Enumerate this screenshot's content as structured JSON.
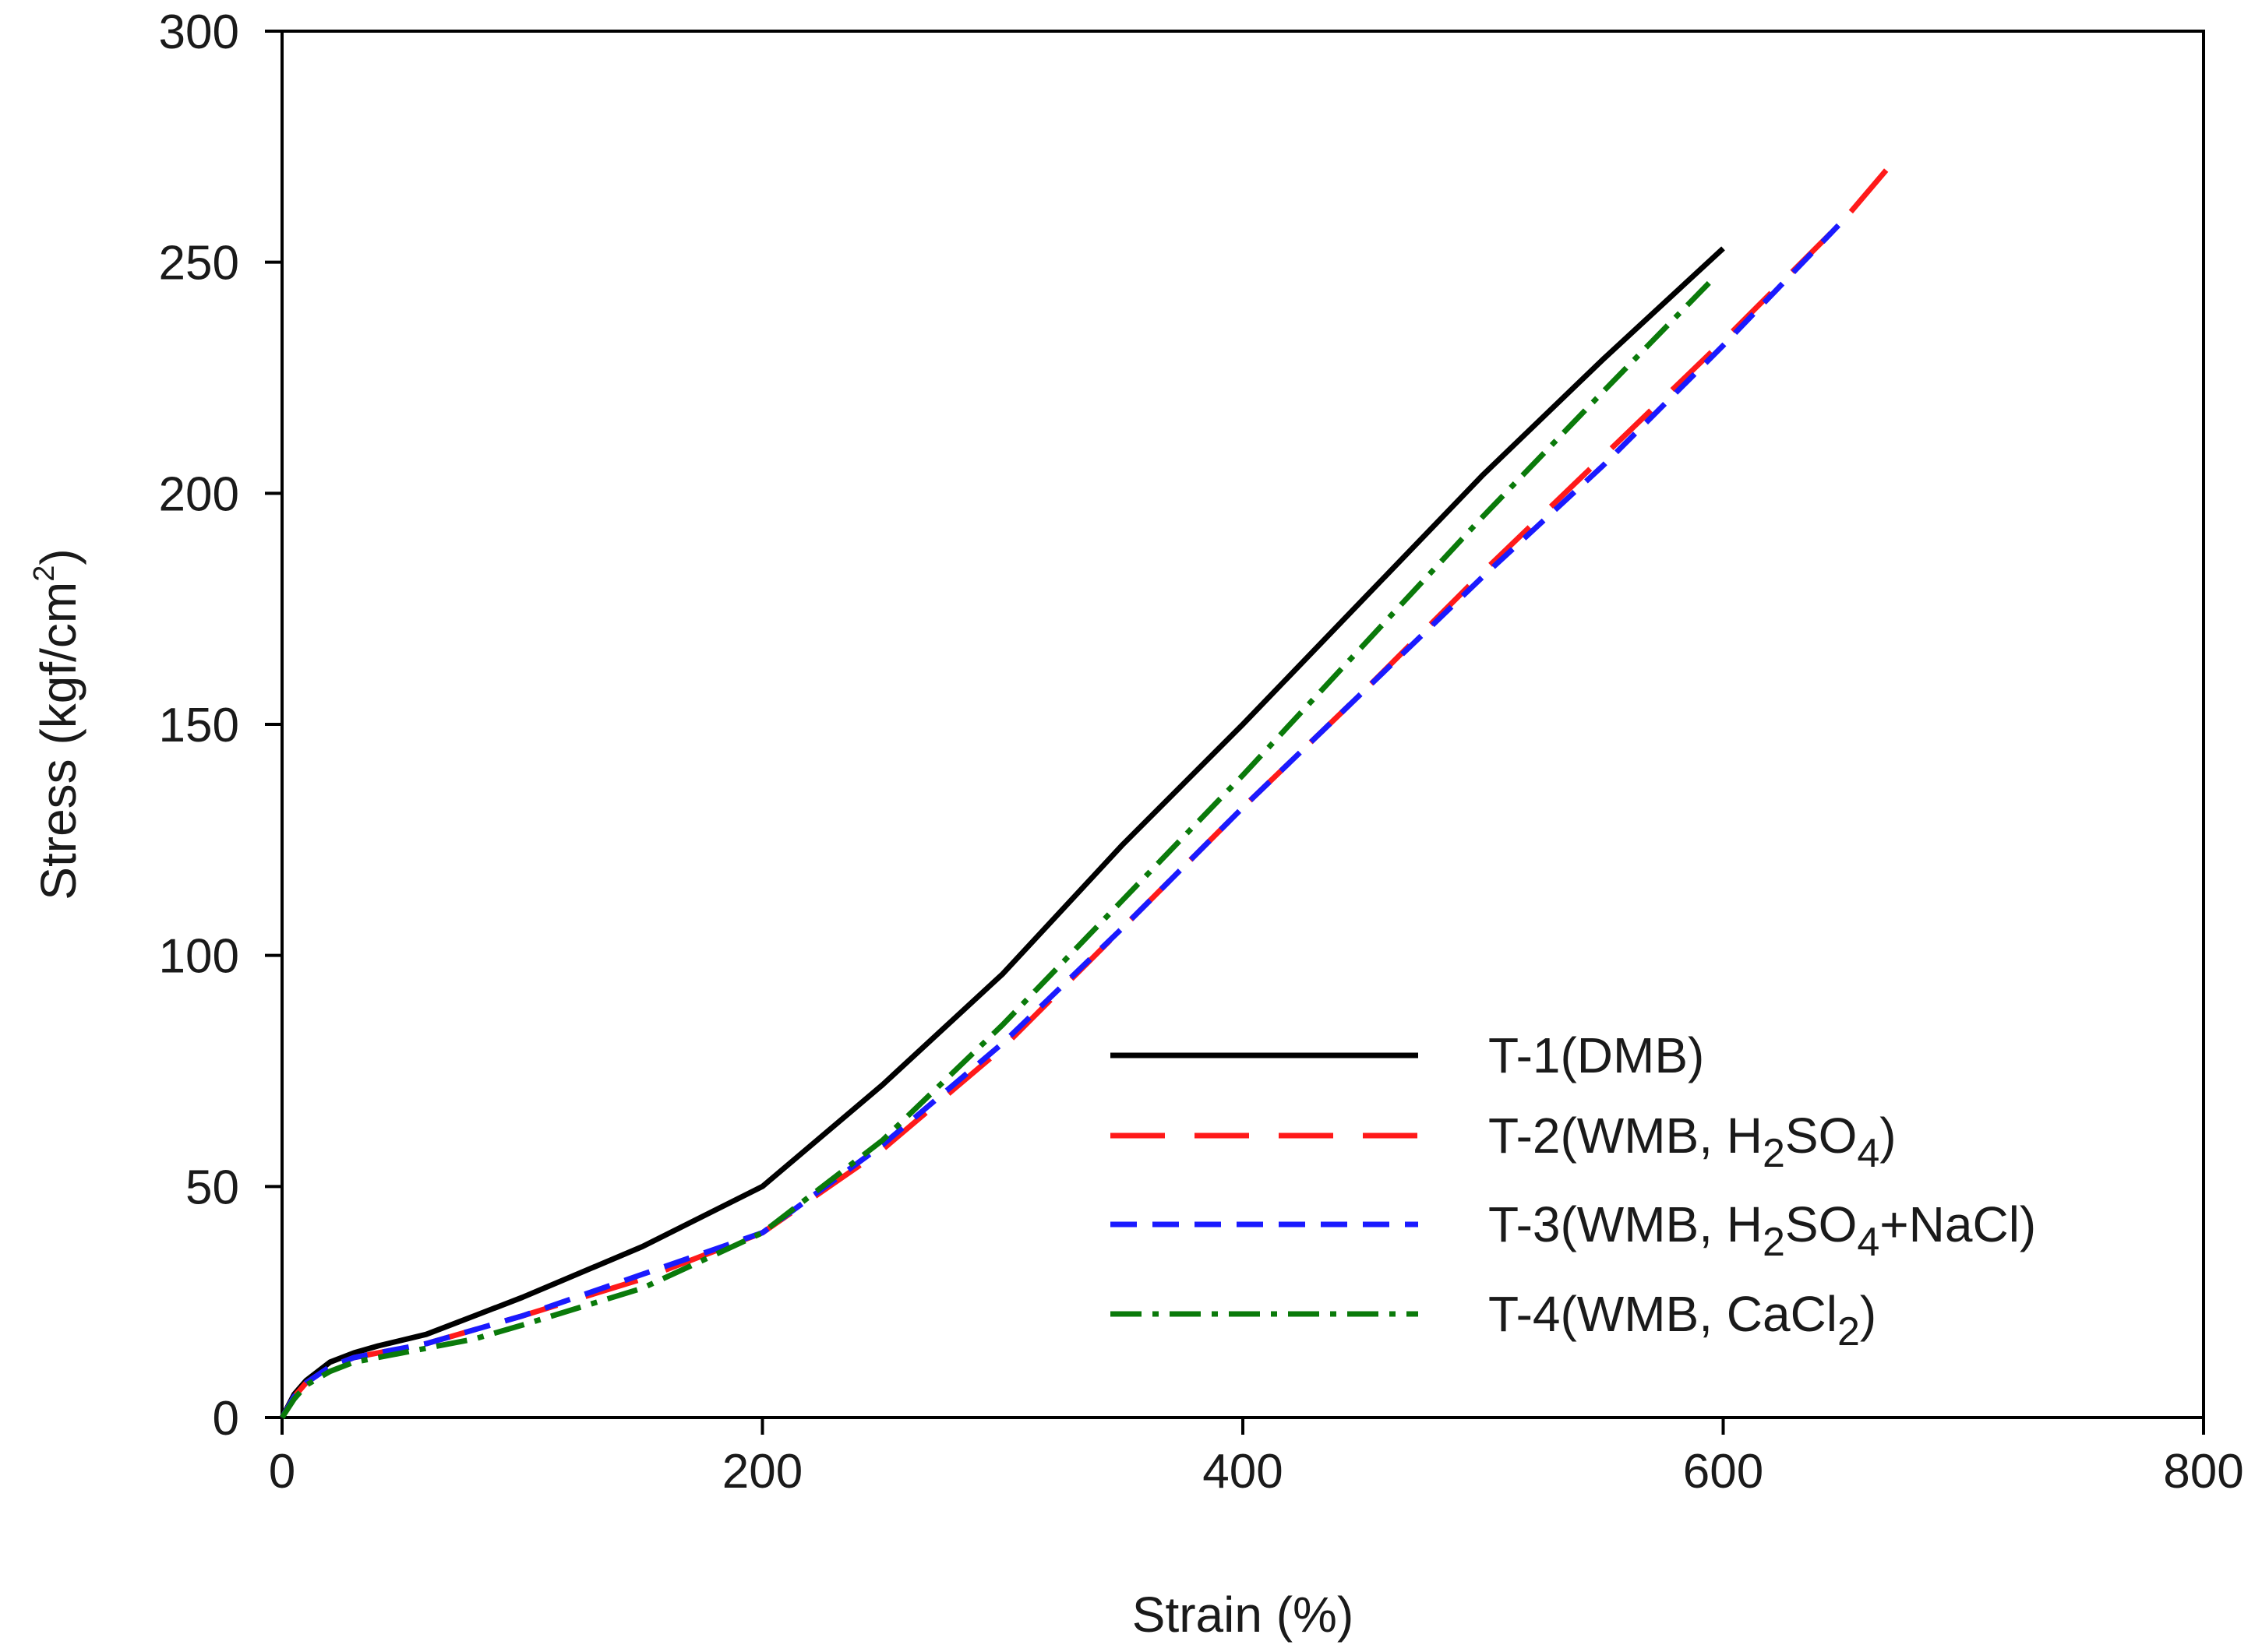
{
  "chart_data": {
    "type": "line",
    "title": "",
    "xlabel": "Strain (%)",
    "ylabel": {
      "base": "Stress (kgf/cm",
      "sup": "2",
      "close": ")"
    },
    "xlim": [
      0,
      800
    ],
    "ylim": [
      0,
      300
    ],
    "xticks": [
      0,
      200,
      400,
      600,
      800
    ],
    "yticks": [
      0,
      50,
      100,
      150,
      200,
      250,
      300
    ],
    "grid": false,
    "legend_position": "bottom-right",
    "series": [
      {
        "name": "T-1(DMB)",
        "label_parts": [
          {
            "t": "T-1(DMB)"
          }
        ],
        "color": "#000000",
        "style": "solid",
        "x": [
          0,
          5,
          10,
          20,
          30,
          40,
          60,
          80,
          100,
          150,
          200,
          250,
          300,
          350,
          400,
          450,
          500,
          550,
          600
        ],
        "y": [
          0,
          5,
          8,
          12,
          14,
          15.5,
          18,
          22,
          26,
          37,
          50,
          72,
          96,
          124,
          150,
          177,
          204,
          229,
          253
        ]
      },
      {
        "name": "T-2(WMB, H2SO4)",
        "label_parts": [
          {
            "t": "T-2(WMB, H"
          },
          {
            "t": "2",
            "sub": true
          },
          {
            "t": "SO"
          },
          {
            "t": "4",
            "sub": true
          },
          {
            "t": ")"
          }
        ],
        "color": "#ff1a1a",
        "style": "longdash",
        "x": [
          0,
          5,
          10,
          20,
          30,
          40,
          60,
          80,
          100,
          150,
          200,
          250,
          300,
          350,
          400,
          450,
          500,
          550,
          600,
          650,
          668
        ],
        "y": [
          0,
          4.5,
          7.5,
          11,
          13,
          14,
          16,
          19,
          22,
          30,
          40,
          58,
          80,
          106,
          132,
          157,
          183,
          208,
          233,
          259,
          270
        ]
      },
      {
        "name": "T-3(WMB, H2SO4+NaCl)",
        "label_parts": [
          {
            "t": "T-3(WMB, H"
          },
          {
            "t": "2",
            "sub": true
          },
          {
            "t": "SO"
          },
          {
            "t": "4",
            "sub": true
          },
          {
            "t": "+NaCl)"
          }
        ],
        "color": "#1a1aff",
        "style": "shortdash",
        "x": [
          0,
          5,
          10,
          20,
          30,
          40,
          60,
          80,
          100,
          150,
          200,
          250,
          300,
          350,
          400,
          450,
          500,
          550,
          600,
          648
        ],
        "y": [
          0,
          4.5,
          7.5,
          11,
          13,
          14,
          16,
          19,
          22,
          31,
          40,
          59,
          81,
          106,
          132,
          157,
          182,
          206,
          232,
          258
        ]
      },
      {
        "name": "T-4(WMB, CaCl2)",
        "label_parts": [
          {
            "t": "T-4(WMB, CaCl"
          },
          {
            "t": "2",
            "sub": true
          },
          {
            "t": ")"
          }
        ],
        "color": "#0a7a0a",
        "style": "dashdot",
        "x": [
          0,
          5,
          10,
          20,
          30,
          40,
          60,
          80,
          100,
          150,
          200,
          250,
          300,
          350,
          400,
          450,
          500,
          550,
          595
        ],
        "y": [
          0,
          4,
          7,
          10,
          12,
          13,
          15,
          17,
          20,
          28,
          40,
          60,
          85,
          112,
          139,
          167,
          195,
          222,
          246
        ]
      }
    ]
  }
}
